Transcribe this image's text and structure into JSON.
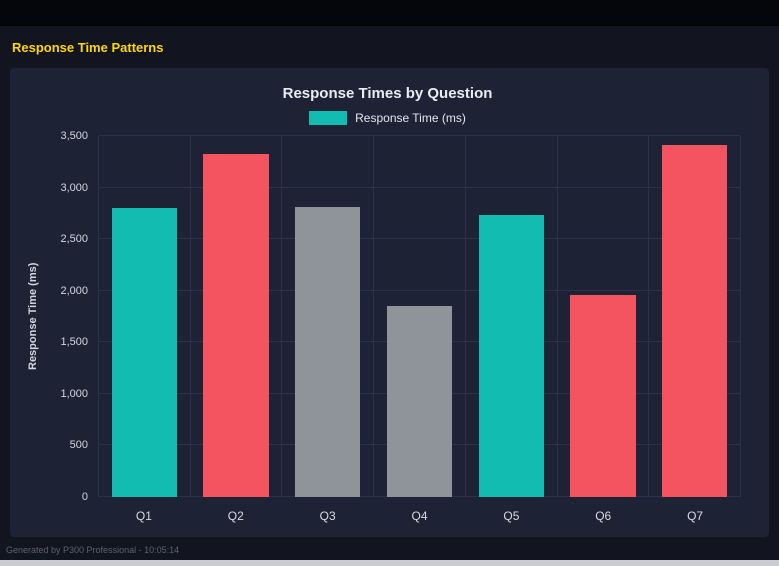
{
  "page": {
    "title": "Response Time Patterns",
    "footer": "Generated by P300 Professional - 10:05:14"
  },
  "chart": {
    "title": "Response Times by Question",
    "legend_label": "Response Time (ms)",
    "y_axis_label": "Response Time (ms)"
  },
  "chart_data": {
    "type": "bar",
    "title": "Response Times by Question",
    "categories": [
      "Q1",
      "Q2",
      "Q3",
      "Q4",
      "Q5",
      "Q6",
      "Q7"
    ],
    "values": [
      2800,
      3330,
      2810,
      1850,
      2730,
      1960,
      3410
    ],
    "bar_colors": [
      "#13bcb0",
      "#f3545f",
      "#8f939a",
      "#8f939a",
      "#13bcb0",
      "#f3545f",
      "#f3545f"
    ],
    "xlabel": "",
    "ylabel": "Response Time (ms)",
    "ylim": [
      0,
      3500
    ],
    "ytick_step": 500,
    "legend": [
      "Response Time (ms)"
    ],
    "legend_position": "top",
    "grid": true
  },
  "colors": {
    "accent_teal": "#13bcb0",
    "accent_red": "#f3545f",
    "bar_gray": "#8f939a",
    "title_yellow": "#ffd700",
    "panel_bg": "#1d2334",
    "page_bg": "#12151f",
    "grid_line": "#2b3147"
  }
}
